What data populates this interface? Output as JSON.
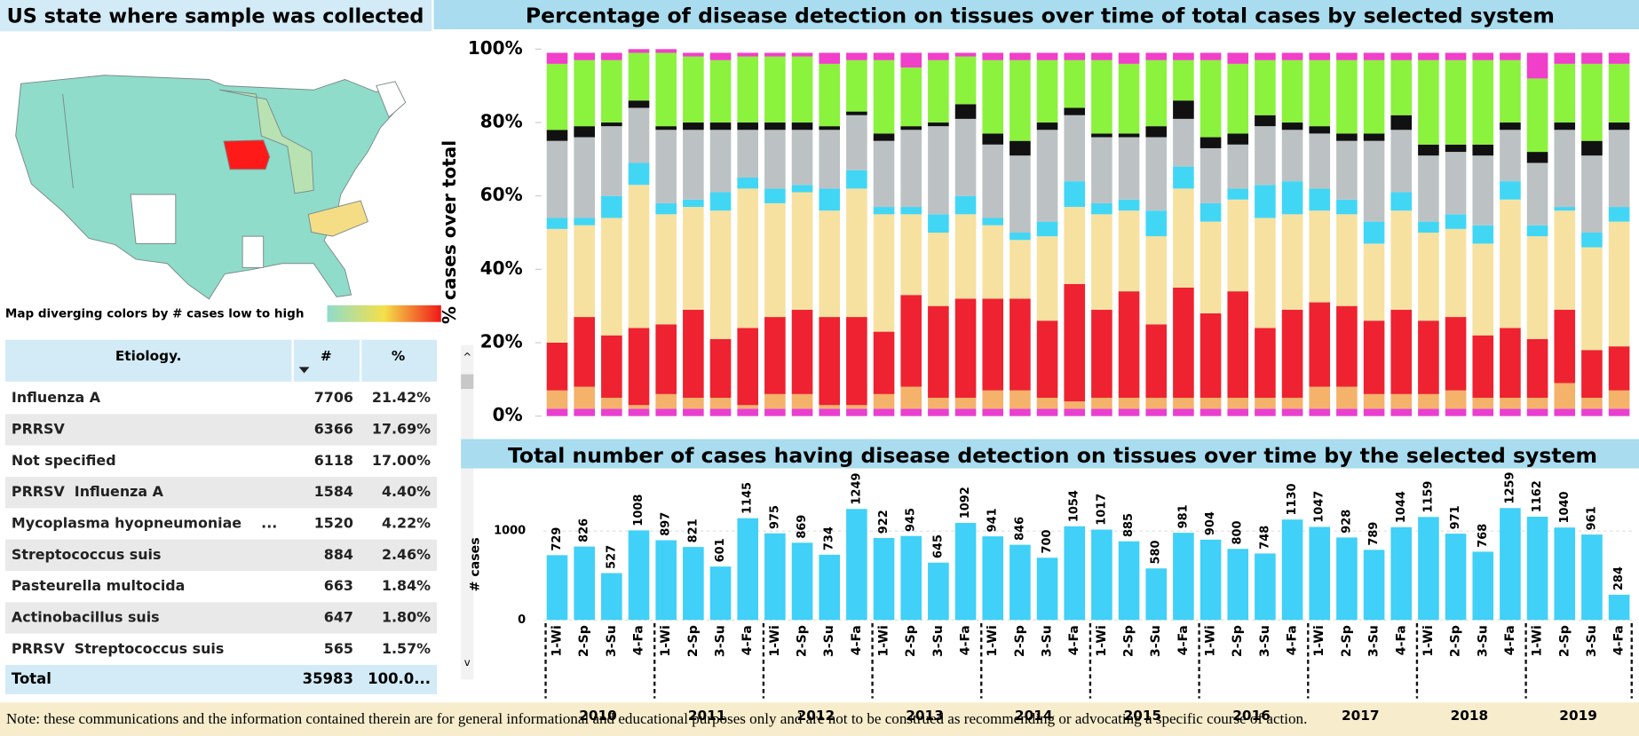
{
  "map": {
    "title": "US state where sample was collected",
    "legend": "Map diverging colors by # cases low to high"
  },
  "table": {
    "header": [
      "Etiology.",
      "#",
      "%"
    ],
    "rows": [
      [
        "Influenza A",
        "7706",
        "21.42%"
      ],
      [
        "PRRSV",
        "6366",
        "17.69%"
      ],
      [
        "Not specified",
        "6118",
        "17.00%"
      ],
      [
        "PRRSV  Influenza A",
        "1584",
        "4.40%"
      ],
      [
        "Mycoplasma hyopneumoniae    ...",
        "1520",
        "4.22%"
      ],
      [
        "Streptococcus suis",
        "884",
        "2.46%"
      ],
      [
        "Pasteurella multocida",
        "663",
        "1.84%"
      ],
      [
        "Actinobacillus suis",
        "647",
        "1.80%"
      ],
      [
        "PRRSV  Streptococcus suis",
        "565",
        "1.57%"
      ]
    ],
    "total": [
      "Total",
      "35983",
      "100.0..."
    ]
  },
  "chart_data": [
    {
      "type": "stacked_bar",
      "title": "Percentage of disease detection on tissues over time of total cases by selected system",
      "ylabel": "% cases over total",
      "ylim": [
        0,
        100
      ],
      "yticks": [
        {
          "value": 0,
          "label": "0%"
        },
        {
          "value": 20,
          "label": "20%"
        },
        {
          "value": 40,
          "label": "40%"
        },
        {
          "value": 60,
          "label": "60%"
        },
        {
          "value": 80,
          "label": "80%"
        },
        {
          "value": 100,
          "label": "100%"
        }
      ],
      "series": [
        {
          "color": "#e83fd0",
          "values": [
            2,
            2,
            2,
            2,
            2,
            2,
            2,
            2,
            2,
            2,
            2,
            2,
            2,
            2,
            2,
            2,
            2,
            2,
            2,
            2,
            2,
            2,
            2,
            2,
            2,
            2,
            2,
            2,
            2,
            2,
            2,
            2,
            2,
            2,
            2,
            2,
            2,
            2,
            2,
            2
          ]
        },
        {
          "color": "#f4b26b",
          "values": [
            5,
            6,
            3,
            1,
            4,
            3,
            3,
            1,
            4,
            4,
            1,
            1,
            4,
            6,
            3,
            3,
            5,
            5,
            3,
            2,
            3,
            3,
            3,
            3,
            3,
            3,
            3,
            3,
            6,
            6,
            4,
            4,
            4,
            5,
            3,
            3,
            3,
            7,
            3,
            5
          ]
        },
        {
          "color": "#ee2230",
          "values": [
            13,
            19,
            17,
            21,
            19,
            24,
            16,
            21,
            21,
            23,
            24,
            24,
            17,
            25,
            25,
            27,
            25,
            25,
            21,
            32,
            24,
            29,
            20,
            30,
            23,
            29,
            19,
            24,
            23,
            22,
            20,
            23,
            20,
            20,
            17,
            19,
            16,
            20,
            13,
            12
          ]
        },
        {
          "color": "#f7e1a0",
          "values": [
            31,
            25,
            32,
            39,
            30,
            28,
            35,
            38,
            31,
            32,
            29,
            35,
            32,
            22,
            20,
            23,
            20,
            16,
            23,
            21,
            26,
            22,
            24,
            27,
            25,
            25,
            30,
            26,
            25,
            25,
            21,
            27,
            24,
            24,
            25,
            35,
            28,
            27,
            28,
            34
          ]
        },
        {
          "color": "#42d6f5",
          "values": [
            3,
            2,
            6,
            6,
            3,
            2,
            5,
            3,
            4,
            2,
            6,
            5,
            2,
            2,
            5,
            5,
            2,
            2,
            4,
            7,
            3,
            3,
            7,
            6,
            5,
            3,
            9,
            9,
            6,
            4,
            6,
            5,
            3,
            4,
            5,
            5,
            3,
            1,
            4,
            4
          ]
        },
        {
          "color": "#bcc2c4",
          "values": [
            21,
            22,
            19,
            15,
            20,
            19,
            17,
            13,
            16,
            15,
            16,
            15,
            18,
            21,
            24,
            21,
            20,
            21,
            25,
            18,
            18,
            17,
            20,
            13,
            15,
            12,
            16,
            14,
            15,
            16,
            22,
            17,
            18,
            17,
            19,
            14,
            17,
            21,
            21,
            21
          ]
        },
        {
          "color": "#111111",
          "values": [
            3,
            3,
            1,
            2,
            1,
            2,
            2,
            2,
            2,
            2,
            1,
            1,
            2,
            1,
            1,
            4,
            3,
            4,
            2,
            2,
            1,
            1,
            3,
            5,
            3,
            3,
            3,
            2,
            2,
            2,
            2,
            4,
            3,
            2,
            3,
            2,
            3,
            2,
            4,
            2
          ]
        },
        {
          "color": "#8bf23d",
          "values": [
            18,
            18,
            17,
            13,
            20,
            18,
            17,
            18,
            18,
            18,
            17,
            14,
            20,
            16,
            17,
            13,
            20,
            22,
            17,
            13,
            20,
            19,
            18,
            11,
            21,
            19,
            15,
            17,
            18,
            20,
            20,
            15,
            23,
            23,
            23,
            17,
            20,
            16,
            21,
            16
          ]
        },
        {
          "color": "#f03fc8",
          "values": [
            3,
            2,
            2,
            1,
            1,
            1,
            2,
            1,
            1,
            1,
            3,
            2,
            2,
            4,
            2,
            1,
            2,
            2,
            2,
            2,
            2,
            3,
            2,
            2,
            2,
            3,
            2,
            2,
            2,
            2,
            2,
            2,
            2,
            2,
            2,
            2,
            7,
            3,
            3,
            3
          ]
        }
      ]
    },
    {
      "type": "bar",
      "title": "Total number of cases having disease detection on tissues over time by the selected system",
      "ylabel": "# cases",
      "color": "#40d0f8",
      "ylim": [
        0,
        1600
      ],
      "yticks": [
        0,
        1000
      ],
      "categories": [
        "1-Wi",
        "2-Sp",
        "3-Su",
        "4-Fa",
        "1-Wi",
        "2-Sp",
        "3-Su",
        "4-Fa",
        "1-Wi",
        "2-Sp",
        "3-Su",
        "4-Fa",
        "1-Wi",
        "2-Sp",
        "3-Su",
        "4-Fa",
        "1-Wi",
        "2-Sp",
        "3-Su",
        "4-Fa",
        "1-Wi",
        "2-Sp",
        "3-Su",
        "4-Fa",
        "1-Wi",
        "2-Sp",
        "3-Su",
        "4-Fa",
        "1-Wi",
        "2-Sp",
        "3-Su",
        "4-Fa",
        "1-Wi",
        "2-Sp",
        "3-Su",
        "4-Fa",
        "1-Wi",
        "2-Sp",
        "3-Su",
        "4-Fa"
      ],
      "groups": [
        "2010",
        "2011",
        "2012",
        "2013",
        "2014",
        "2015",
        "2016",
        "2017",
        "2018",
        "2019"
      ],
      "values": [
        729,
        826,
        527,
        1008,
        897,
        821,
        601,
        1145,
        975,
        869,
        734,
        1249,
        922,
        945,
        645,
        1092,
        941,
        846,
        700,
        1054,
        1017,
        885,
        580,
        981,
        904,
        800,
        748,
        1130,
        1047,
        928,
        789,
        1044,
        1159,
        971,
        768,
        1259,
        1162,
        1040,
        961,
        284
      ]
    }
  ],
  "note": "Note: these communications and the information contained therein are for general informational and educational purposes only and are not to be construed as recommending or advocating a specific course of action."
}
